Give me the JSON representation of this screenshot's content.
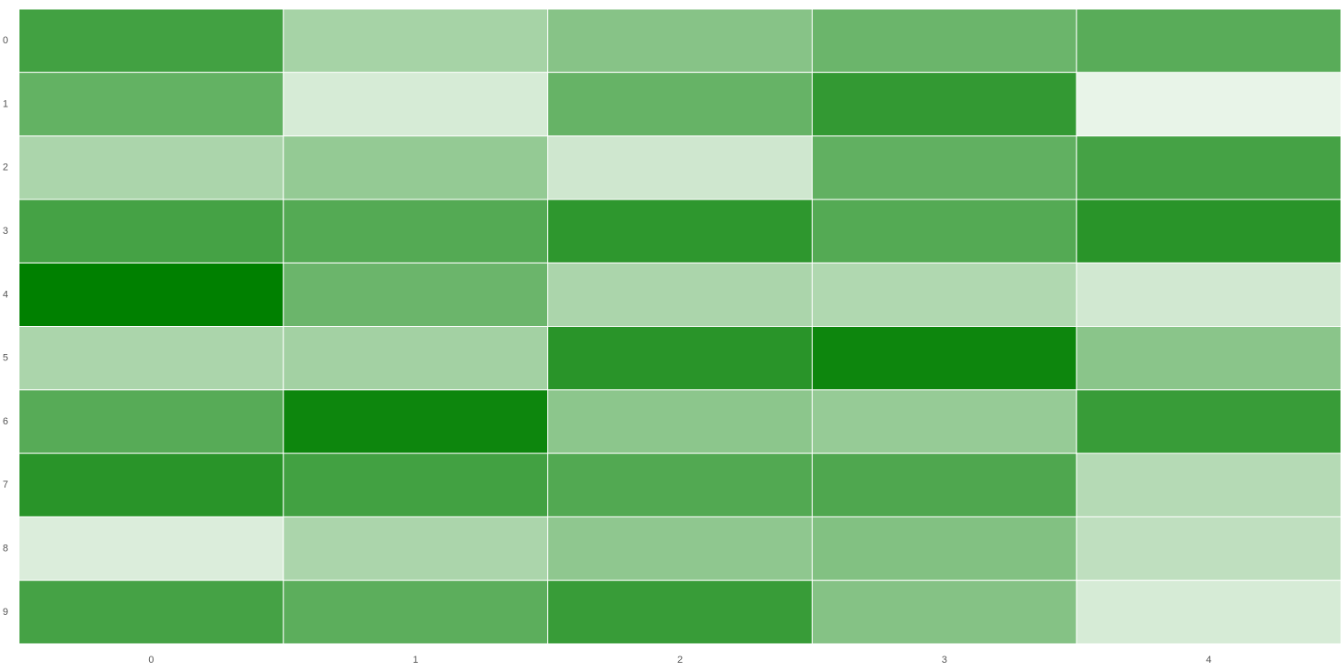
{
  "chart_data": {
    "type": "heatmap",
    "x_categories": [
      "0",
      "1",
      "2",
      "3",
      "4"
    ],
    "y_categories": [
      "0",
      "1",
      "2",
      "3",
      "4",
      "5",
      "6",
      "7",
      "8",
      "9"
    ],
    "values": [
      [
        74,
        35,
        47,
        58,
        65
      ],
      [
        61,
        16,
        60,
        80,
        9
      ],
      [
        33,
        42,
        19,
        62,
        73
      ],
      [
        73,
        67,
        82,
        67,
        84
      ],
      [
        100,
        58,
        33,
        31,
        18
      ],
      [
        33,
        36,
        84,
        95,
        46
      ],
      [
        66,
        95,
        45,
        41,
        78
      ],
      [
        84,
        74,
        68,
        69,
        29
      ],
      [
        14,
        33,
        44,
        49,
        25
      ],
      [
        73,
        64,
        78,
        48,
        16
      ]
    ],
    "zlim": [
      0,
      100
    ],
    "colorscale": [
      "#ffffff",
      "#008000"
    ]
  }
}
